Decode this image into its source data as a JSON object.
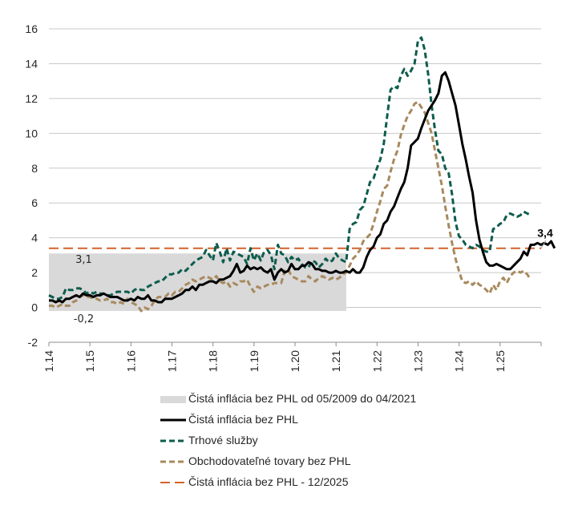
{
  "chart_data": {
    "type": "line",
    "title": "",
    "xlabel": "",
    "ylabel": "",
    "ylim": [
      -2,
      16
    ],
    "yticks": [
      -2,
      0,
      2,
      4,
      6,
      8,
      10,
      12,
      14,
      16
    ],
    "xticks": [
      "1.14",
      "1.15",
      "1.16",
      "1.17",
      "1.18",
      "1.19",
      "1.20",
      "1.21",
      "1.22",
      "1.23",
      "1.24",
      "1.25"
    ],
    "xlim_year": [
      2014,
      2026
    ],
    "grid": true,
    "legend_position": "bottom",
    "band": {
      "name": "Čistá inflácia bez PHL od 05/2009 do 04/2021",
      "from": -0.2,
      "to": 3.1,
      "x_from": 2014.0,
      "x_to": 2021.25,
      "color": "#d9d9d9",
      "label_high": "3,1",
      "label_low": "-0,2"
    },
    "hline": {
      "name": "Čistá inflácia bez PHL - 12/2025",
      "value": 3.4,
      "color": "#d4622a",
      "label": "3,4"
    },
    "series": [
      {
        "name": "Čistá inflácia bez PHL",
        "color": "#000000",
        "style": "solid",
        "x_start": 2014.0,
        "step": 0.0833,
        "values": [
          0.4,
          0.4,
          0.3,
          0.4,
          0.3,
          0.5,
          0.5,
          0.6,
          0.7,
          0.6,
          0.8,
          0.7,
          0.7,
          0.6,
          0.7,
          0.7,
          0.8,
          0.7,
          0.6,
          0.6,
          0.6,
          0.5,
          0.4,
          0.4,
          0.5,
          0.4,
          0.6,
          0.5,
          0.5,
          0.7,
          0.4,
          0.4,
          0.3,
          0.3,
          0.5,
          0.5,
          0.5,
          0.6,
          0.7,
          0.8,
          1.0,
          1.0,
          1.2,
          1.0,
          1.3,
          1.3,
          1.4,
          1.5,
          1.5,
          1.4,
          1.6,
          1.6,
          1.7,
          1.8,
          2.1,
          2.5,
          2.0,
          2.1,
          2.4,
          2.2,
          2.3,
          2.2,
          2.3,
          2.1,
          2.0,
          2.2,
          1.6,
          2.0,
          2.2,
          2.0,
          2.1,
          2.5,
          2.2,
          2.2,
          2.4,
          2.4,
          2.6,
          2.5,
          2.2,
          2.2,
          2.1,
          2.1,
          2.0,
          2.0,
          2.1,
          2.0,
          2.0,
          2.1,
          2.0,
          2.2,
          2.0,
          2.0,
          2.3,
          2.9,
          3.3,
          3.5,
          4.0,
          4.2,
          4.8,
          5.0,
          5.5,
          5.8,
          6.3,
          6.8,
          7.2,
          8.0,
          9.3,
          9.5,
          9.7,
          10.3,
          10.8,
          11.3,
          11.6,
          11.9,
          12.3,
          13.3,
          13.5,
          13.0,
          12.3,
          11.6,
          10.5,
          9.4,
          8.5,
          7.5,
          6.6,
          5.0,
          3.9,
          3.2,
          2.6,
          2.4,
          2.4,
          2.5,
          2.4,
          2.3,
          2.2,
          2.2,
          2.4,
          2.6,
          2.8,
          3.2,
          3.0,
          3.6,
          3.6,
          3.7,
          3.6,
          3.7,
          3.6,
          3.8,
          3.4
        ]
      },
      {
        "name": "Trhové služby",
        "color": "#0e5c4d",
        "style": "dashed",
        "x_start": 2014.0,
        "step": 0.0833,
        "values": [
          0.7,
          0.6,
          0.5,
          0.5,
          0.6,
          1.1,
          1.0,
          1.0,
          1.1,
          1.1,
          1.0,
          0.8,
          0.9,
          0.8,
          0.9,
          0.8,
          0.8,
          0.7,
          0.7,
          0.8,
          0.9,
          0.9,
          0.9,
          0.9,
          0.8,
          1.0,
          1.1,
          1.0,
          1.0,
          1.2,
          1.3,
          1.4,
          1.5,
          1.5,
          1.7,
          1.9,
          1.9,
          2.0,
          2.0,
          2.2,
          2.1,
          2.3,
          2.5,
          2.7,
          2.8,
          2.9,
          3.3,
          3.0,
          2.7,
          3.7,
          3.2,
          2.6,
          3.4,
          2.7,
          3.2,
          3.1,
          3.0,
          2.9,
          2.5,
          3.4,
          2.7,
          3.1,
          2.7,
          3.2,
          3.3,
          3.0,
          2.2,
          3.6,
          3.1,
          3.0,
          2.6,
          2.9,
          2.7,
          2.8,
          2.5,
          2.3,
          2.3,
          2.7,
          2.6,
          2.3,
          2.5,
          2.8,
          2.6,
          2.7,
          3.1,
          2.8,
          2.7,
          2.6,
          4.5,
          4.8,
          4.9,
          5.6,
          5.8,
          6.5,
          7.2,
          7.4,
          8.0,
          8.5,
          9.4,
          11.0,
          12.5,
          12.7,
          12.6,
          13.3,
          13.7,
          13.3,
          13.6,
          14.0,
          15.3,
          15.5,
          14.8,
          13.4,
          11.6,
          10.2,
          9.0,
          8.8,
          8.0,
          7.7,
          6.5,
          4.9,
          4.1,
          3.9,
          3.6,
          3.5,
          3.4,
          3.6,
          3.5,
          3.3,
          3.2,
          3.2,
          4.5,
          4.6,
          4.8,
          4.9,
          5.3,
          5.4,
          5.3,
          5.2,
          5.3,
          5.5,
          5.4,
          5.3
        ]
      },
      {
        "name": "Obchodovateľné tovary bez PHL",
        "color": "#a88a5f",
        "style": "dashed",
        "x_start": 2014.0,
        "step": 0.0833,
        "values": [
          0.1,
          0.1,
          0.0,
          0.1,
          0.2,
          0.1,
          0.1,
          0.3,
          0.4,
          0.6,
          0.7,
          0.6,
          0.6,
          0.5,
          0.5,
          0.4,
          0.4,
          0.5,
          0.3,
          0.3,
          0.2,
          0.3,
          0.2,
          0.5,
          0.3,
          0.2,
          0.1,
          -0.2,
          0.0,
          -0.1,
          0.1,
          0.4,
          0.6,
          0.6,
          0.6,
          0.8,
          0.7,
          0.9,
          0.9,
          1.1,
          1.3,
          1.4,
          1.6,
          1.5,
          1.6,
          1.7,
          1.8,
          1.7,
          1.6,
          1.8,
          1.5,
          1.4,
          1.5,
          1.2,
          1.4,
          1.3,
          1.5,
          1.5,
          1.6,
          1.2,
          0.9,
          1.2,
          1.1,
          1.2,
          1.3,
          1.3,
          1.4,
          1.4,
          1.4,
          2.1,
          2.2,
          1.8,
          1.7,
          1.6,
          1.5,
          1.5,
          1.8,
          1.6,
          1.5,
          1.7,
          1.8,
          1.7,
          1.6,
          1.7,
          1.6,
          1.7,
          1.9,
          2.0,
          2.4,
          2.8,
          3.0,
          3.3,
          3.8,
          4.0,
          4.2,
          4.8,
          5.5,
          6.1,
          6.8,
          7.0,
          7.8,
          8.5,
          9.0,
          9.9,
          10.5,
          11.0,
          11.3,
          11.7,
          11.8,
          11.5,
          11.2,
          10.6,
          10.0,
          9.0,
          8.0,
          7.0,
          5.8,
          4.7,
          3.7,
          2.8,
          2.1,
          1.5,
          1.4,
          1.5,
          1.3,
          1.5,
          1.3,
          1.2,
          1.0,
          0.8,
          1.3,
          1.0,
          1.5,
          1.7,
          1.4,
          1.8,
          2.0,
          2.1,
          2.0,
          2.1,
          1.9,
          1.6
        ]
      }
    ]
  },
  "legend": [
    {
      "label": "Čistá inflácia bez PHL od 05/2009 do 04/2021",
      "kind": "band",
      "color": "#d9d9d9"
    },
    {
      "label": "Čistá inflácia bez PHL",
      "kind": "solid",
      "color": "#000000"
    },
    {
      "label": "Trhové služby",
      "kind": "dashed",
      "color": "#0e5c4d"
    },
    {
      "label": "Obchodovateľné tovary bez PHL",
      "kind": "dashed",
      "color": "#a88a5f"
    },
    {
      "label": "Čistá inflácia bez PHL - 12/2025",
      "kind": "longdash",
      "color": "#d4622a"
    }
  ]
}
